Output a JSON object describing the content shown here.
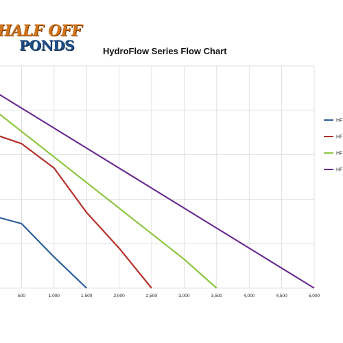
{
  "logo": {
    "line1": "HALF OFF",
    "line2": "PONDS"
  },
  "colors": {
    "series": [
      "#2d5d9b",
      "#b5312a",
      "#8dc63f",
      "#6a2b8e"
    ],
    "grid": "#d9d9d9"
  },
  "chart_data": {
    "type": "line",
    "title": "HydroFlow Series Flow Chart",
    "xlabel": "",
    "ylabel": "",
    "xlim": [
      0,
      5000
    ],
    "x_ticks": [
      "500",
      "1,000",
      "1,500",
      "2,000",
      "2,500",
      "3,000",
      "3,500",
      "4,000",
      "4,500",
      "5,000"
    ],
    "x_tick_values": [
      500,
      1000,
      1500,
      2000,
      2500,
      3000,
      3500,
      4000,
      4500,
      5000
    ],
    "grid": true,
    "legend_placement": "right",
    "series": [
      {
        "name": "HF",
        "x": [
          0,
          500,
          1000,
          1500
        ],
        "y": [
          33,
          29,
          14,
          0
        ]
      },
      {
        "name": "HF",
        "x": [
          0,
          500,
          1000,
          1500,
          2000,
          2500
        ],
        "y": [
          70,
          65,
          54,
          34,
          18,
          0
        ]
      },
      {
        "name": "HF",
        "x": [
          0,
          3000,
          3500
        ],
        "y": [
          82,
          13,
          0
        ]
      },
      {
        "name": "HF",
        "x": [
          0,
          5000
        ],
        "y": [
          90,
          0
        ]
      }
    ]
  }
}
